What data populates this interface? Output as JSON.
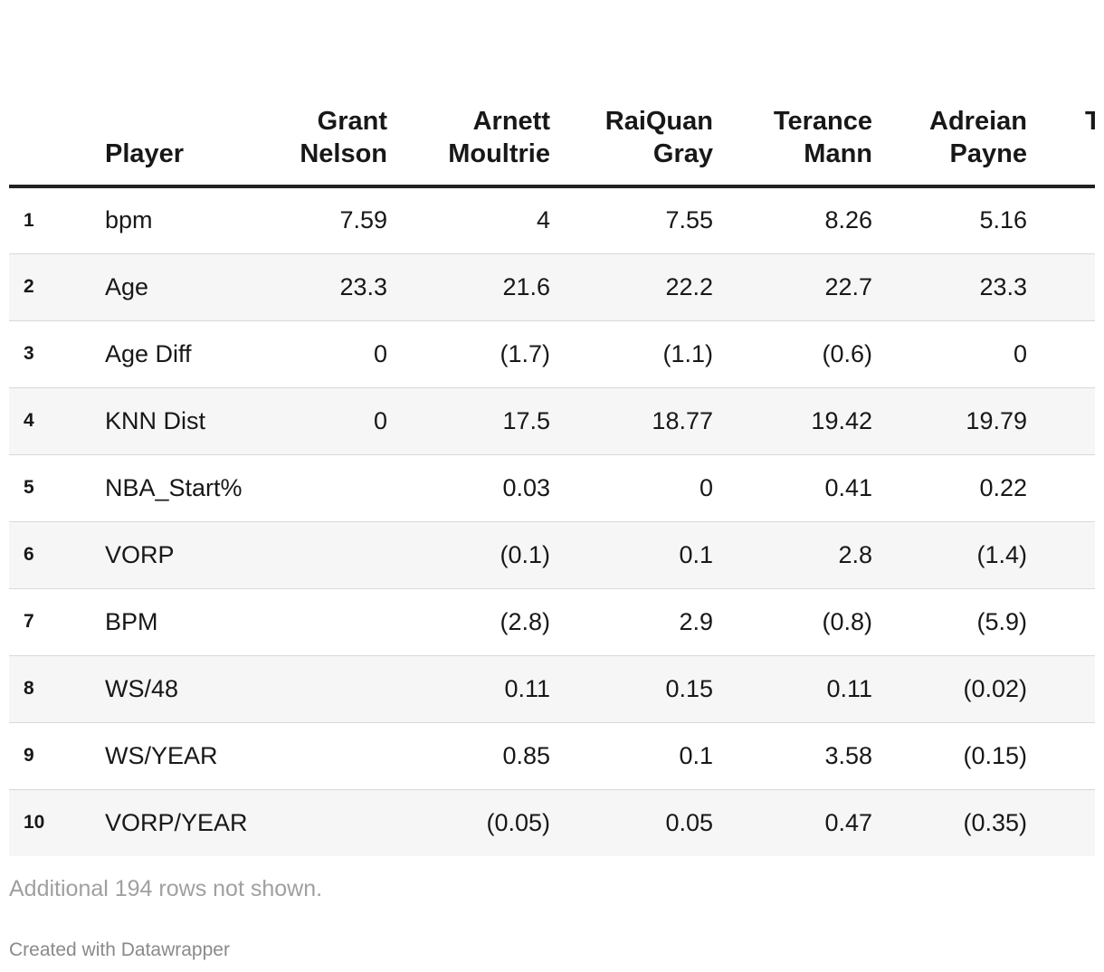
{
  "chart_data": {
    "type": "table",
    "columns": [
      {
        "label_line1": "",
        "label_line2": "Player"
      },
      {
        "label_line1": "Grant",
        "label_line2": "Nelson"
      },
      {
        "label_line1": "Arnett",
        "label_line2": "Moultrie"
      },
      {
        "label_line1": "RaiQuan",
        "label_line2": "Gray"
      },
      {
        "label_line1": "Terance",
        "label_line2": "Mann"
      },
      {
        "label_line1": "Adreian",
        "label_line2": "Payne"
      },
      {
        "label_line1": "T",
        "label_line2": ""
      }
    ],
    "rows": [
      {
        "rank": "1",
        "stat": "bpm",
        "values": [
          "7.59",
          "4",
          "7.55",
          "8.26",
          "5.16"
        ]
      },
      {
        "rank": "2",
        "stat": "Age",
        "values": [
          "23.3",
          "21.6",
          "22.2",
          "22.7",
          "23.3"
        ]
      },
      {
        "rank": "3",
        "stat": "Age Diff",
        "values": [
          "0",
          "(1.7)",
          "(1.1)",
          "(0.6)",
          "0"
        ]
      },
      {
        "rank": "4",
        "stat": "KNN Dist",
        "values": [
          "0",
          "17.5",
          "18.77",
          "19.42",
          "19.79"
        ]
      },
      {
        "rank": "5",
        "stat": "NBA_Start%",
        "values": [
          "",
          "0.03",
          "0",
          "0.41",
          "0.22"
        ]
      },
      {
        "rank": "6",
        "stat": "VORP",
        "values": [
          "",
          "(0.1)",
          "0.1",
          "2.8",
          "(1.4)"
        ]
      },
      {
        "rank": "7",
        "stat": "BPM",
        "values": [
          "",
          "(2.8)",
          "2.9",
          "(0.8)",
          "(5.9)"
        ]
      },
      {
        "rank": "8",
        "stat": "WS/48",
        "values": [
          "",
          "0.11",
          "0.15",
          "0.11",
          "(0.02)"
        ]
      },
      {
        "rank": "9",
        "stat": "WS/YEAR",
        "values": [
          "",
          "0.85",
          "0.1",
          "3.58",
          "(0.15)"
        ]
      },
      {
        "rank": "10",
        "stat": "VORP/YEAR",
        "values": [
          "",
          "(0.05)",
          "0.05",
          "0.47",
          "(0.35)"
        ]
      }
    ],
    "notes": "Additional 194 rows not shown.",
    "credit": "Created with Datawrapper"
  },
  "colors": {
    "text": "#181818",
    "header_rule": "#222222",
    "row_divider": "#d9d9d9",
    "alt_row_bg": "#f6f6f6",
    "notes_text": "#a0a0a0",
    "credit_text": "#8a8a8a"
  }
}
